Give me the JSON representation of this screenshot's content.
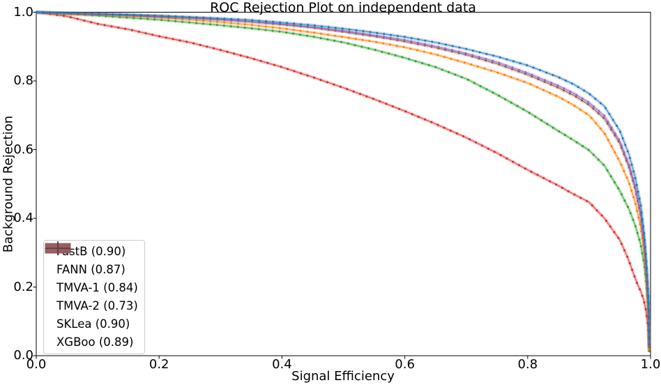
{
  "chart_data": {
    "type": "line",
    "title": "ROC Rejection Plot on independent data",
    "xlabel": "Signal Efficiency",
    "ylabel": "Background Rejection",
    "xlim": [
      0.0,
      1.0
    ],
    "ylim": [
      0.0,
      1.0
    ],
    "xticks": [
      "0.0",
      "0.2",
      "0.4",
      "0.6",
      "0.8",
      "1.0"
    ],
    "yticks": [
      "0.0",
      "0.2",
      "0.4",
      "0.6",
      "0.8",
      "1.0"
    ],
    "grid": false,
    "legend_position": "lower-left",
    "style": {
      "background": "#ffffff",
      "text_color": "#000000",
      "spine_color": "#000000",
      "legend_border": "#cccccc"
    },
    "series": [
      {
        "name": "FastB",
        "auc": "0.90",
        "label": "FastB (0.90)",
        "color": "#1f77b4",
        "points": [
          [
            0.0,
            1.0
          ],
          [
            0.05,
            0.998
          ],
          [
            0.1,
            0.996
          ],
          [
            0.15,
            0.993
          ],
          [
            0.2,
            0.99
          ],
          [
            0.25,
            0.986
          ],
          [
            0.3,
            0.982
          ],
          [
            0.35,
            0.977
          ],
          [
            0.4,
            0.97
          ],
          [
            0.45,
            0.962
          ],
          [
            0.5,
            0.952
          ],
          [
            0.55,
            0.941
          ],
          [
            0.6,
            0.928
          ],
          [
            0.65,
            0.912
          ],
          [
            0.7,
            0.893
          ],
          [
            0.75,
            0.871
          ],
          [
            0.8,
            0.845
          ],
          [
            0.85,
            0.811
          ],
          [
            0.875,
            0.79
          ],
          [
            0.9,
            0.763
          ],
          [
            0.925,
            0.726
          ],
          [
            0.95,
            0.655
          ],
          [
            0.965,
            0.585
          ],
          [
            0.975,
            0.52
          ],
          [
            0.984,
            0.44
          ],
          [
            0.99,
            0.35
          ],
          [
            0.994,
            0.255
          ],
          [
            0.997,
            0.15
          ],
          [
            0.998,
            0.03
          ]
        ]
      },
      {
        "name": "FANN",
        "auc": "0.87",
        "label": "FANN (0.87)",
        "color": "#ff7f0e",
        "points": [
          [
            0.0,
            1.0
          ],
          [
            0.05,
            0.996
          ],
          [
            0.1,
            0.993
          ],
          [
            0.15,
            0.989
          ],
          [
            0.2,
            0.985
          ],
          [
            0.25,
            0.978
          ],
          [
            0.3,
            0.971
          ],
          [
            0.35,
            0.963
          ],
          [
            0.4,
            0.953
          ],
          [
            0.45,
            0.941
          ],
          [
            0.5,
            0.928
          ],
          [
            0.55,
            0.914
          ],
          [
            0.6,
            0.898
          ],
          [
            0.65,
            0.877
          ],
          [
            0.7,
            0.852
          ],
          [
            0.75,
            0.825
          ],
          [
            0.8,
            0.794
          ],
          [
            0.85,
            0.754
          ],
          [
            0.875,
            0.729
          ],
          [
            0.9,
            0.7
          ],
          [
            0.925,
            0.648
          ],
          [
            0.95,
            0.565
          ],
          [
            0.965,
            0.504
          ],
          [
            0.975,
            0.446
          ],
          [
            0.984,
            0.374
          ],
          [
            0.99,
            0.298
          ],
          [
            0.994,
            0.21
          ],
          [
            0.997,
            0.115
          ],
          [
            0.998,
            0.015
          ]
        ]
      },
      {
        "name": "TMVA-1",
        "auc": "0.84",
        "label": "TMVA-1 (0.84)",
        "color": "#2ca02c",
        "points": [
          [
            0.0,
            1.0
          ],
          [
            0.05,
            0.995
          ],
          [
            0.1,
            0.99
          ],
          [
            0.15,
            0.984
          ],
          [
            0.2,
            0.978
          ],
          [
            0.25,
            0.97
          ],
          [
            0.3,
            0.962
          ],
          [
            0.35,
            0.953
          ],
          [
            0.4,
            0.943
          ],
          [
            0.45,
            0.929
          ],
          [
            0.5,
            0.912
          ],
          [
            0.55,
            0.891
          ],
          [
            0.6,
            0.867
          ],
          [
            0.65,
            0.84
          ],
          [
            0.7,
            0.806
          ],
          [
            0.75,
            0.76
          ],
          [
            0.8,
            0.71
          ],
          [
            0.85,
            0.654
          ],
          [
            0.875,
            0.627
          ],
          [
            0.9,
            0.598
          ],
          [
            0.925,
            0.553
          ],
          [
            0.95,
            0.48
          ],
          [
            0.965,
            0.426
          ],
          [
            0.975,
            0.38
          ],
          [
            0.984,
            0.324
          ],
          [
            0.99,
            0.262
          ],
          [
            0.994,
            0.19
          ],
          [
            0.997,
            0.105
          ],
          [
            0.998,
            0.012
          ]
        ]
      },
      {
        "name": "TMVA-2",
        "auc": "0.73",
        "label": "TMVA-2 (0.73)",
        "color": "#d62728",
        "points": [
          [
            0.0,
            1.0
          ],
          [
            0.05,
            0.988
          ],
          [
            0.1,
            0.966
          ],
          [
            0.15,
            0.95
          ],
          [
            0.2,
            0.93
          ],
          [
            0.25,
            0.912
          ],
          [
            0.3,
            0.89
          ],
          [
            0.35,
            0.866
          ],
          [
            0.4,
            0.84
          ],
          [
            0.45,
            0.811
          ],
          [
            0.5,
            0.78
          ],
          [
            0.55,
            0.747
          ],
          [
            0.6,
            0.712
          ],
          [
            0.65,
            0.675
          ],
          [
            0.7,
            0.635
          ],
          [
            0.75,
            0.59
          ],
          [
            0.8,
            0.541
          ],
          [
            0.85,
            0.495
          ],
          [
            0.875,
            0.47
          ],
          [
            0.9,
            0.447
          ],
          [
            0.925,
            0.4
          ],
          [
            0.95,
            0.337
          ],
          [
            0.963,
            0.285
          ],
          [
            0.972,
            0.24
          ],
          [
            0.979,
            0.207
          ],
          [
            0.984,
            0.188
          ],
          [
            0.989,
            0.162
          ],
          [
            0.993,
            0.128
          ],
          [
            0.996,
            0.08
          ],
          [
            0.998,
            0.01
          ]
        ]
      },
      {
        "name": "SKLea",
        "auc": "0.90",
        "label": "SKLea (0.90)",
        "color": "#9467bd",
        "points": [
          [
            0.0,
            1.0
          ],
          [
            0.05,
            0.997
          ],
          [
            0.1,
            0.995
          ],
          [
            0.15,
            0.992
          ],
          [
            0.2,
            0.988
          ],
          [
            0.25,
            0.984
          ],
          [
            0.3,
            0.979
          ],
          [
            0.35,
            0.973
          ],
          [
            0.4,
            0.966
          ],
          [
            0.45,
            0.957
          ],
          [
            0.5,
            0.946
          ],
          [
            0.55,
            0.933
          ],
          [
            0.6,
            0.919
          ],
          [
            0.65,
            0.901
          ],
          [
            0.7,
            0.88
          ],
          [
            0.75,
            0.855
          ],
          [
            0.8,
            0.823
          ],
          [
            0.85,
            0.786
          ],
          [
            0.875,
            0.764
          ],
          [
            0.9,
            0.737
          ],
          [
            0.925,
            0.698
          ],
          [
            0.95,
            0.625
          ],
          [
            0.965,
            0.556
          ],
          [
            0.975,
            0.494
          ],
          [
            0.984,
            0.416
          ],
          [
            0.99,
            0.33
          ],
          [
            0.994,
            0.238
          ],
          [
            0.997,
            0.138
          ],
          [
            0.998,
            0.025
          ]
        ]
      },
      {
        "name": "XGBoo",
        "auc": "0.89",
        "label": "XGBoo (0.89)",
        "color": "#8c564b",
        "points": [
          [
            0.0,
            1.0
          ],
          [
            0.05,
            0.997
          ],
          [
            0.1,
            0.994
          ],
          [
            0.15,
            0.991
          ],
          [
            0.2,
            0.987
          ],
          [
            0.25,
            0.983
          ],
          [
            0.3,
            0.978
          ],
          [
            0.35,
            0.972
          ],
          [
            0.4,
            0.964
          ],
          [
            0.45,
            0.955
          ],
          [
            0.5,
            0.943
          ],
          [
            0.55,
            0.93
          ],
          [
            0.6,
            0.915
          ],
          [
            0.65,
            0.897
          ],
          [
            0.7,
            0.876
          ],
          [
            0.75,
            0.85
          ],
          [
            0.8,
            0.818
          ],
          [
            0.85,
            0.78
          ],
          [
            0.875,
            0.758
          ],
          [
            0.9,
            0.73
          ],
          [
            0.925,
            0.69
          ],
          [
            0.95,
            0.618
          ],
          [
            0.965,
            0.548
          ],
          [
            0.975,
            0.486
          ],
          [
            0.984,
            0.408
          ],
          [
            0.99,
            0.322
          ],
          [
            0.994,
            0.23
          ],
          [
            0.997,
            0.13
          ],
          [
            0.998,
            0.02
          ]
        ]
      }
    ],
    "legend_order": [
      "FastB",
      "FANN",
      "TMVA-1",
      "TMVA-2",
      "SKLea",
      "XGBoo"
    ],
    "draw_order": [
      "TMVA-2",
      "TMVA-1",
      "FANN",
      "XGBoo",
      "SKLea",
      "FastB"
    ]
  }
}
